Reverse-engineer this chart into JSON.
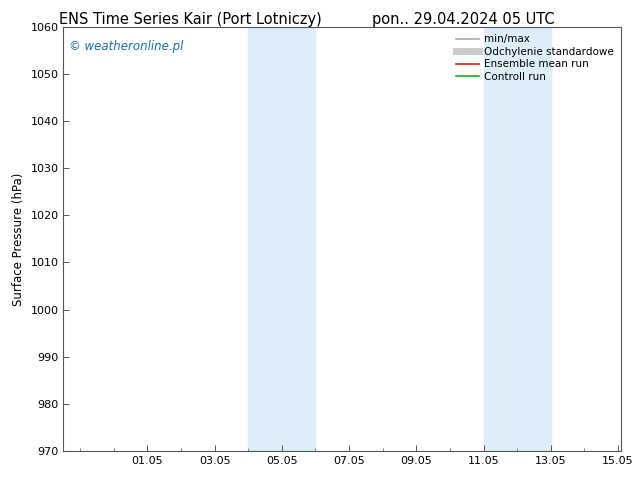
{
  "title_left": "ENS Time Series Kair (Port Lotniczy)",
  "title_right": "pon.. 29.04.2024 05 UTC",
  "ylabel": "Surface Pressure (hPa)",
  "ylim": [
    970,
    1060
  ],
  "yticks": [
    970,
    980,
    990,
    1000,
    1010,
    1020,
    1030,
    1040,
    1050,
    1060
  ],
  "xlim_left": -0.5,
  "xlim_right": 16.1,
  "xtick_labels": [
    "01.05",
    "03.05",
    "05.05",
    "07.05",
    "09.05",
    "11.05",
    "13.05",
    "15.05"
  ],
  "xtick_positions": [
    2.0,
    4.0,
    6.0,
    8.0,
    10.0,
    12.0,
    14.0,
    16.0
  ],
  "shaded_regions": [
    {
      "x_start": 5.0,
      "x_end": 7.0
    },
    {
      "x_start": 12.0,
      "x_end": 14.0
    }
  ],
  "shade_color": "#ddeef8",
  "watermark": "© weatheronline.pl",
  "watermark_color": "#1a6db5",
  "legend_entries": [
    {
      "label": "min/max",
      "color": "#aaaaaa",
      "lw": 1.2
    },
    {
      "label": "Odchylenie standardowe",
      "color": "#cccccc",
      "lw": 5
    },
    {
      "label": "Ensemble mean run",
      "color": "#dd2222",
      "lw": 1.2
    },
    {
      "label": "Controll run",
      "color": "#22aa22",
      "lw": 1.2
    }
  ],
  "bg_color": "#ffffff",
  "spine_color": "#555555",
  "title_fontsize": 10.5,
  "ylabel_fontsize": 8.5,
  "tick_fontsize": 8.0,
  "watermark_fontsize": 8.5,
  "legend_fontsize": 7.5
}
